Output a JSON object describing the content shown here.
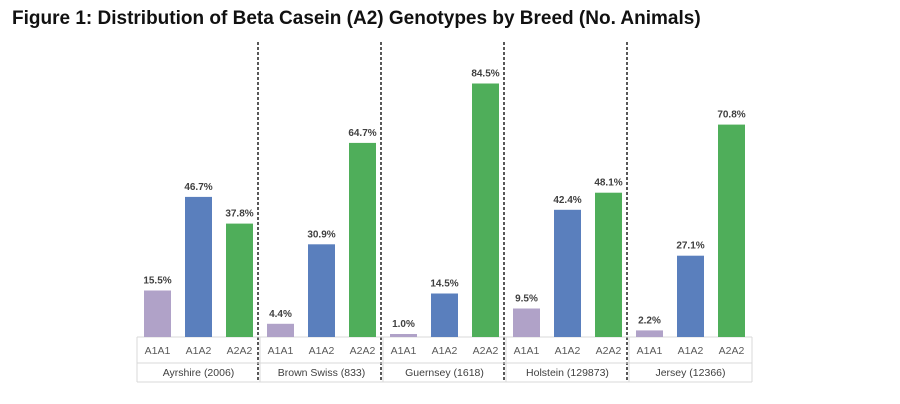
{
  "chart_data": {
    "type": "bar",
    "title": "Figure 1: Distribution of Beta Casein (A2) Genotypes by Breed (No. Animals)",
    "ylim": [
      0,
      100
    ],
    "groups": [
      {
        "name": "Ayrshire (2006)",
        "categories": [
          "A1A1",
          "A1A2",
          "A2A2"
        ],
        "values": [
          15.5,
          46.7,
          37.8
        ],
        "labels": [
          "15.5%",
          "46.7%",
          "37.8%"
        ]
      },
      {
        "name": "Brown Swiss (833)",
        "categories": [
          "A1A1",
          "A1A2",
          "A2A2"
        ],
        "values": [
          4.4,
          30.9,
          64.7
        ],
        "labels": [
          "4.4%",
          "30.9%",
          "64.7%"
        ]
      },
      {
        "name": "Guernsey (1618)",
        "categories": [
          "A1A1",
          "A1A2",
          "A2A2"
        ],
        "values": [
          1.0,
          14.5,
          84.5
        ],
        "labels": [
          "1.0%",
          "14.5%",
          "84.5%"
        ]
      },
      {
        "name": "Holstein (129873)",
        "categories": [
          "A1A1",
          "A1A2",
          "A2A2"
        ],
        "values": [
          9.5,
          42.4,
          48.1
        ],
        "labels": [
          "9.5%",
          "42.4%",
          "48.1%"
        ]
      },
      {
        "name": "Jersey (12366)",
        "categories": [
          "A1A1",
          "A1A2",
          "A2A2"
        ],
        "values": [
          2.2,
          27.1,
          70.8
        ],
        "labels": [
          "2.2%",
          "27.1%",
          "70.8%"
        ]
      }
    ],
    "colors": {
      "A1A1": "#b0a2c8",
      "A1A2": "#5a7fbd",
      "A2A2": "#4fae5a"
    },
    "grid": false,
    "legend": "none"
  }
}
